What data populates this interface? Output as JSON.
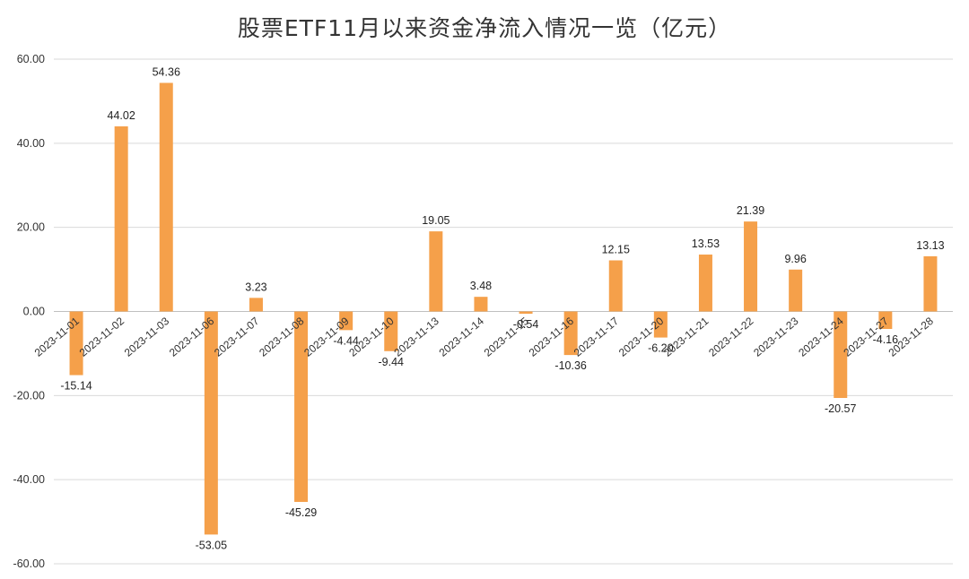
{
  "chart_data": {
    "type": "bar",
    "title": "股票ETF11月以来资金净流入情况一览（亿元）",
    "xlabel": "",
    "ylabel": "",
    "ylim": [
      -60,
      60
    ],
    "yticks": [
      60,
      40,
      20,
      0,
      -20,
      -40,
      -60
    ],
    "ytick_labels": [
      "60.00",
      "40.00",
      "20.00",
      "0.00",
      "-20.00",
      "-40.00",
      "-60.00"
    ],
    "grid": true,
    "legend": "none",
    "bar_color": "#F5A04A",
    "categories": [
      "2023-11-01",
      "2023-11-02",
      "2023-11-03",
      "2023-11-06",
      "2023-11-07",
      "2023-11-08",
      "2023-11-09",
      "2023-11-10",
      "2023-11-13",
      "2023-11-14",
      "2023-11-15",
      "2023-11-16",
      "2023-11-17",
      "2023-11-20",
      "2023-11-21",
      "2023-11-22",
      "2023-11-23",
      "2023-11-24",
      "2023-11-27",
      "2023-11-28"
    ],
    "values": [
      -15.14,
      44.02,
      54.36,
      -53.05,
      3.23,
      -45.29,
      -4.44,
      -9.44,
      19.05,
      3.48,
      -0.54,
      -10.36,
      12.15,
      -6.2,
      13.53,
      21.39,
      9.96,
      -20.57,
      -4.16,
      13.13
    ],
    "value_labels": [
      "-15.14",
      "44.02",
      "54.36",
      "-53.05",
      "3.23",
      "-45.29",
      "-4.44",
      "-9.44",
      "19.05",
      "3.48",
      "-0.54",
      "-10.36",
      "12.15",
      "-6.20",
      "13.53",
      "21.39",
      "9.96",
      "-20.57",
      "-4.16",
      "13.13"
    ]
  }
}
